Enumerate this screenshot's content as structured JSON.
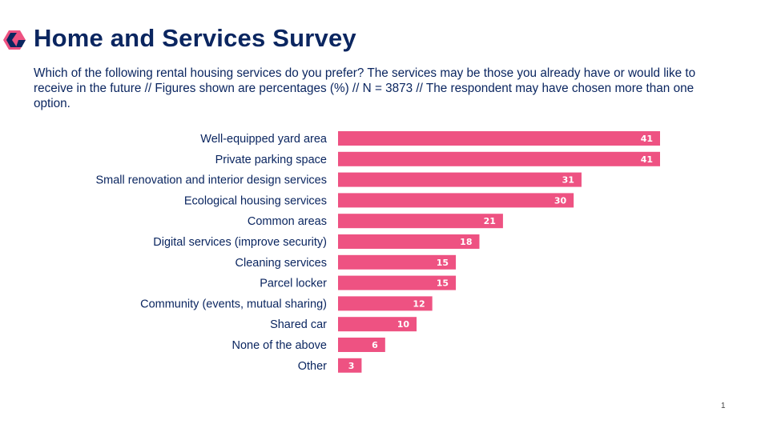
{
  "header": {
    "logo_icon": "hexagon-chevron-logo",
    "title": "Home and Services Survey",
    "subtitle": "Which of the following rental housing services do you prefer? The services may be those you already have or would like to receive in the future  // Figures shown are percentages (%) // N = 3873 // The respondent may have chosen more than one option."
  },
  "chart_data": {
    "type": "bar",
    "orientation": "horizontal",
    "categories": [
      "Well-equipped yard area",
      "Private parking space",
      "Small renovation and interior design services",
      "Ecological housing services",
      "Common areas",
      "Digital services (improve security)",
      "Cleaning services",
      "Parcel locker",
      "Community (events, mutual sharing)",
      "Shared car",
      "None of the above",
      "Other"
    ],
    "values": [
      41,
      41,
      31,
      30,
      21,
      18,
      15,
      15,
      12,
      10,
      6,
      3
    ],
    "data_labels": true,
    "grid": false,
    "xlim": [
      0,
      41
    ],
    "bar_color": "#ee5282",
    "text_color": "#0b2660"
  },
  "footer": {
    "page_number": "1"
  }
}
